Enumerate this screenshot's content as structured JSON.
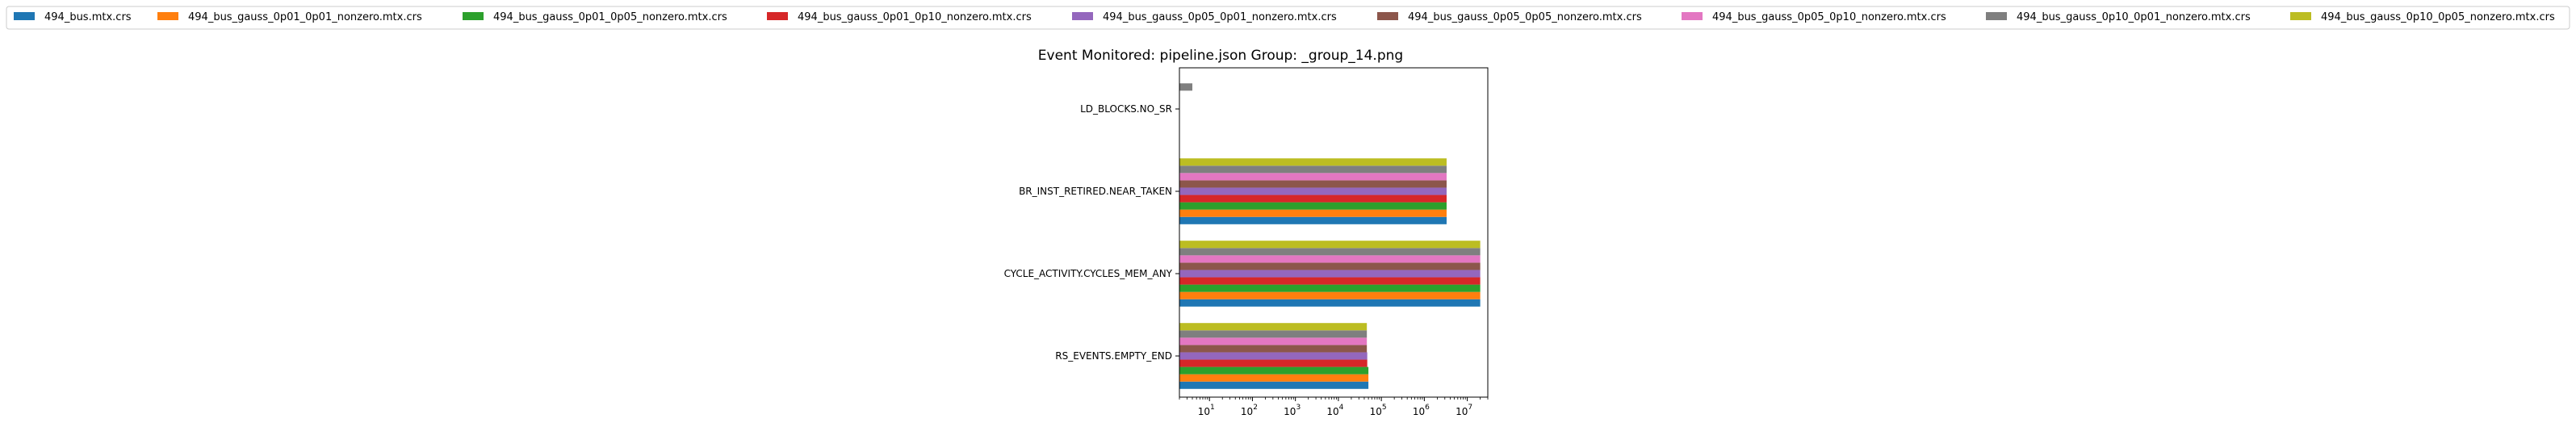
{
  "chart_data": {
    "type": "bar",
    "orientation": "horizontal",
    "title": "Event Monitored: pipeline.json Group: _group_14.png",
    "xlabel": "",
    "ylabel": "",
    "xscale": "log",
    "xlim": [
      2,
      30000000
    ],
    "xticks": [
      {
        "value": 10,
        "base": "10",
        "exp": "1"
      },
      {
        "value": 100,
        "base": "10",
        "exp": "2"
      },
      {
        "value": 1000,
        "base": "10",
        "exp": "3"
      },
      {
        "value": 10000,
        "base": "10",
        "exp": "4"
      },
      {
        "value": 100000,
        "base": "10",
        "exp": "5"
      },
      {
        "value": 1000000,
        "base": "10",
        "exp": "6"
      },
      {
        "value": 10000000,
        "base": "10",
        "exp": "7"
      }
    ],
    "grid": false,
    "legend_position": "top",
    "categories": [
      "LD_BLOCKS.NO_SR",
      "BR_INST_RETIRED.NEAR_TAKEN",
      "CYCLE_ACTIVITY.CYCLES_MEM_ANY",
      "RS_EVENTS.EMPTY_END"
    ],
    "series": [
      {
        "name": "494_bus.mtx.crs",
        "color": "#1f77b4",
        "values": [
          0,
          3300000,
          20000000,
          50000
        ]
      },
      {
        "name": "494_bus_gauss_0p01_0p01_nonzero.mtx.crs",
        "color": "#ff7f0e",
        "values": [
          0,
          3300000,
          20000000,
          50000
        ]
      },
      {
        "name": "494_bus_gauss_0p01_0p05_nonzero.mtx.crs",
        "color": "#2ca02c",
        "values": [
          0,
          3300000,
          20000000,
          50000
        ]
      },
      {
        "name": "494_bus_gauss_0p01_0p10_nonzero.mtx.crs",
        "color": "#d62728",
        "values": [
          0,
          3300000,
          20000000,
          47000
        ]
      },
      {
        "name": "494_bus_gauss_0p05_0p01_nonzero.mtx.crs",
        "color": "#9467bd",
        "values": [
          0,
          3300000,
          20000000,
          47000
        ]
      },
      {
        "name": "494_bus_gauss_0p05_0p05_nonzero.mtx.crs",
        "color": "#8c564b",
        "values": [
          0,
          3300000,
          20000000,
          46000
        ]
      },
      {
        "name": "494_bus_gauss_0p05_0p10_nonzero.mtx.crs",
        "color": "#e377c2",
        "values": [
          0,
          3300000,
          20000000,
          46000
        ]
      },
      {
        "name": "494_bus_gauss_0p10_0p01_nonzero.mtx.crs",
        "color": "#7f7f7f",
        "values": [
          4,
          3300000,
          20000000,
          46000
        ]
      },
      {
        "name": "494_bus_gauss_0p10_0p05_nonzero.mtx.crs",
        "color": "#bcbd22",
        "values": [
          0,
          3300000,
          20000000,
          46000
        ]
      }
    ]
  }
}
